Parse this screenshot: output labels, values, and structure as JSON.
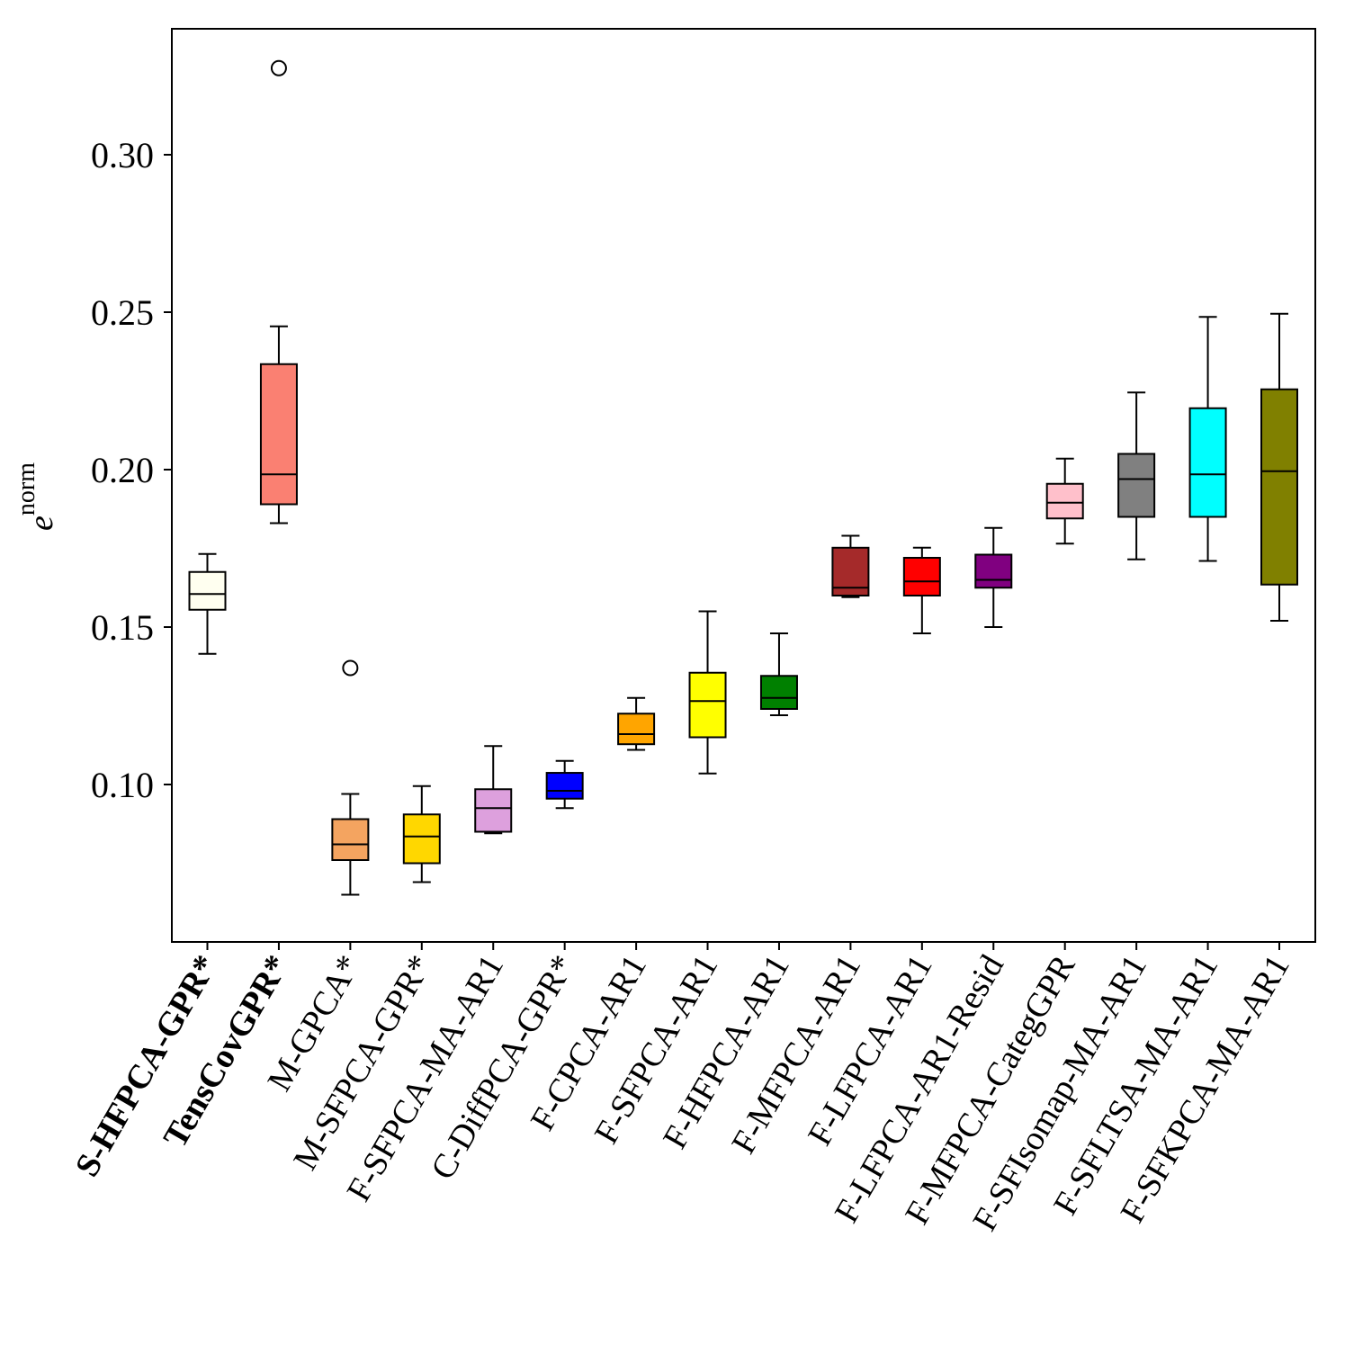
{
  "chart_data": {
    "type": "box",
    "title": "",
    "xlabel": "",
    "ylabel": "e",
    "ylabel_superscript": "norm",
    "ylim": [
      0.05,
      0.34
    ],
    "yticks": [
      0.1,
      0.15,
      0.2,
      0.25,
      0.3
    ],
    "ytick_labels": [
      "0.10",
      "0.15",
      "0.20",
      "0.25",
      "0.30"
    ],
    "categories": [
      {
        "label": "S-HFPCA-GPR*",
        "bold": true,
        "color": "#fffff0",
        "median_color": "#000000",
        "whislo": 0.1415,
        "q1": 0.1555,
        "median": 0.1605,
        "q3": 0.1675,
        "whishi": 0.1732,
        "fliers": []
      },
      {
        "label": "TensCovGPR*",
        "bold": true,
        "color": "#fa8072",
        "median_color": "#000000",
        "whislo": 0.183,
        "q1": 0.189,
        "median": 0.1985,
        "q3": 0.2335,
        "whishi": 0.2455,
        "fliers": [
          0.3275
        ]
      },
      {
        "label": "M-GPCA*",
        "bold": false,
        "color": "#f4a460",
        "median_color": "#000000",
        "whislo": 0.065,
        "q1": 0.076,
        "median": 0.081,
        "q3": 0.089,
        "whishi": 0.097,
        "fliers": [
          0.137
        ]
      },
      {
        "label": "M-SFPCA-GPR*",
        "bold": false,
        "color": "#ffd700",
        "median_color": "#000000",
        "whislo": 0.069,
        "q1": 0.075,
        "median": 0.0835,
        "q3": 0.0905,
        "whishi": 0.0995,
        "fliers": []
      },
      {
        "label": "F-SFPCA-MA-AR1",
        "bold": false,
        "color": "#dda0dd",
        "median_color": "#000000",
        "whislo": 0.0845,
        "q1": 0.085,
        "median": 0.0925,
        "q3": 0.0985,
        "whishi": 0.1122,
        "fliers": []
      },
      {
        "label": "C-DiffPCA-GPR*",
        "bold": false,
        "color": "#0000ff",
        "median_color": "#000000",
        "whislo": 0.0925,
        "q1": 0.0955,
        "median": 0.098,
        "q3": 0.1037,
        "whishi": 0.1075,
        "fliers": []
      },
      {
        "label": "F-CPCA-AR1",
        "bold": false,
        "color": "#ffa500",
        "median_color": "#000000",
        "whislo": 0.111,
        "q1": 0.1128,
        "median": 0.116,
        "q3": 0.1225,
        "whishi": 0.1275,
        "fliers": []
      },
      {
        "label": "F-SFPCA-AR1",
        "bold": false,
        "color": "#ffff00",
        "median_color": "#000000",
        "whislo": 0.1035,
        "q1": 0.115,
        "median": 0.1265,
        "q3": 0.1355,
        "whishi": 0.155,
        "fliers": []
      },
      {
        "label": "F-HFPCA-AR1",
        "bold": false,
        "color": "#008000",
        "median_color": "#000000",
        "whislo": 0.122,
        "q1": 0.124,
        "median": 0.1275,
        "q3": 0.1345,
        "whishi": 0.148,
        "fliers": []
      },
      {
        "label": "F-MFPCA-AR1",
        "bold": false,
        "color": "#a52a2a",
        "median_color": "#000000",
        "whislo": 0.1595,
        "q1": 0.16,
        "median": 0.1625,
        "q3": 0.1752,
        "whishi": 0.179,
        "fliers": []
      },
      {
        "label": "F-LFPCA-AR1",
        "bold": false,
        "color": "#ff0000",
        "median_color": "#000000",
        "whislo": 0.148,
        "q1": 0.16,
        "median": 0.1645,
        "q3": 0.172,
        "whishi": 0.1752,
        "fliers": []
      },
      {
        "label": "F-LFPCA-AR1-Resid",
        "bold": false,
        "color": "#800080",
        "median_color": "#000000",
        "whislo": 0.15,
        "q1": 0.1625,
        "median": 0.165,
        "q3": 0.173,
        "whishi": 0.1815,
        "fliers": []
      },
      {
        "label": "F-MFPCA-CategGPR",
        "bold": false,
        "color": "#ffc0cb",
        "median_color": "#000000",
        "whislo": 0.1765,
        "q1": 0.1845,
        "median": 0.1895,
        "q3": 0.1955,
        "whishi": 0.2035,
        "fliers": []
      },
      {
        "label": "F-SFIsomap-MA-AR1",
        "bold": false,
        "color": "#808080",
        "median_color": "#000000",
        "whislo": 0.1715,
        "q1": 0.185,
        "median": 0.197,
        "q3": 0.205,
        "whishi": 0.2245,
        "fliers": []
      },
      {
        "label": "F-SFLTSA-MA-AR1",
        "bold": false,
        "color": "#00ffff",
        "median_color": "#000000",
        "whislo": 0.171,
        "q1": 0.185,
        "median": 0.1985,
        "q3": 0.2195,
        "whishi": 0.2485,
        "fliers": []
      },
      {
        "label": "F-SFKPCA-MA-AR1",
        "bold": false,
        "color": "#808000",
        "median_color": "#000000",
        "whislo": 0.152,
        "q1": 0.1635,
        "median": 0.1995,
        "q3": 0.2255,
        "whishi": 0.2495,
        "fliers": []
      }
    ]
  }
}
